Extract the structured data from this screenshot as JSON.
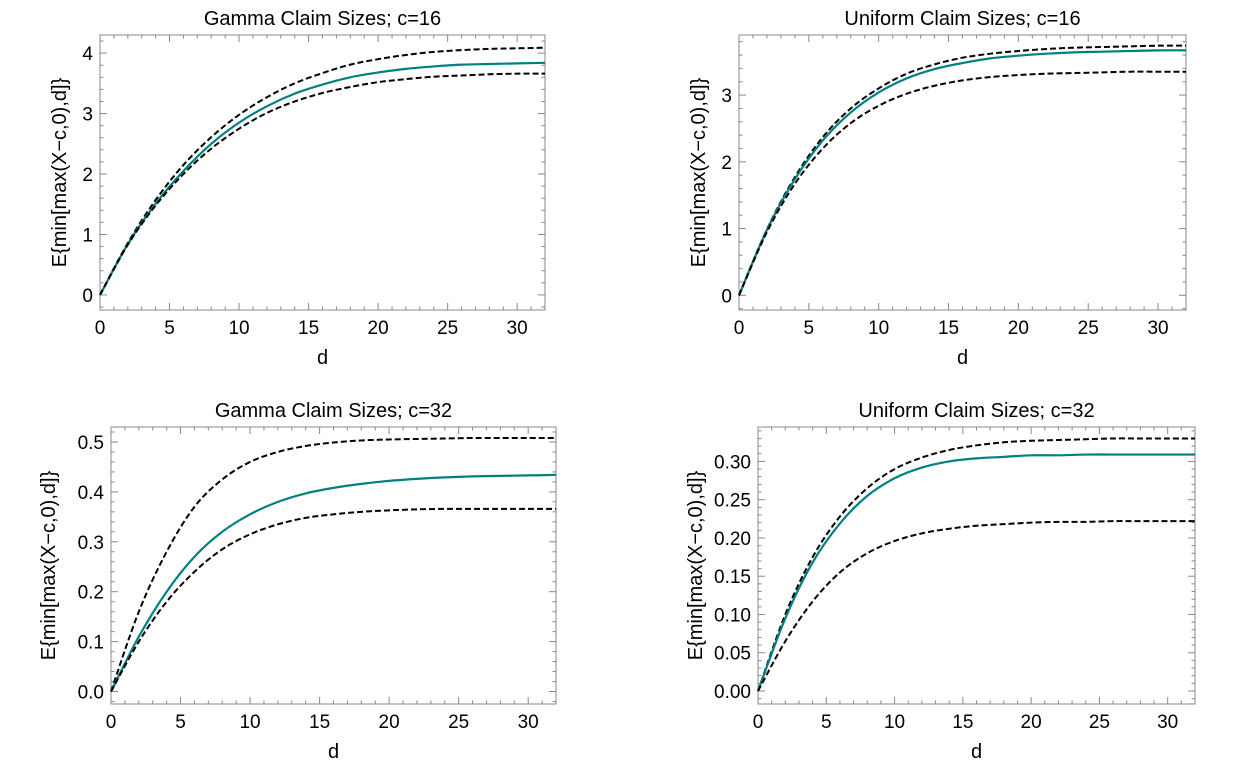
{
  "chart_data": [
    {
      "type": "line",
      "title": "Gamma Claim Sizes; c=16",
      "xlabel": "d",
      "ylabel": "E{min[max(X−c,0),d]}",
      "xlim": [
        0,
        32
      ],
      "ylim": [
        -0.25,
        4.3
      ],
      "xticks": [
        0,
        5,
        10,
        15,
        20,
        25,
        30
      ],
      "yticks": [
        0,
        1,
        2,
        3,
        4
      ],
      "ytick_labels": [
        "0",
        "1",
        "2",
        "3",
        "4"
      ],
      "x": [
        0,
        2,
        4,
        6,
        8,
        10,
        12,
        14,
        16,
        18,
        20,
        22,
        24,
        26,
        28,
        30,
        32
      ],
      "series": [
        {
          "style": "dashed",
          "color": "#000000",
          "values": [
            0,
            0.86,
            1.57,
            2.15,
            2.61,
            2.98,
            3.27,
            3.5,
            3.67,
            3.81,
            3.9,
            3.97,
            4.02,
            4.05,
            4.07,
            4.08,
            4.09
          ]
        },
        {
          "style": "solid",
          "color": "#008080",
          "values": [
            0,
            0.84,
            1.51,
            2.05,
            2.5,
            2.85,
            3.12,
            3.33,
            3.48,
            3.6,
            3.68,
            3.74,
            3.78,
            3.81,
            3.82,
            3.83,
            3.84
          ]
        },
        {
          "style": "dashed",
          "color": "#000000",
          "values": [
            0,
            0.83,
            1.48,
            2.0,
            2.42,
            2.75,
            3.01,
            3.2,
            3.34,
            3.44,
            3.52,
            3.57,
            3.61,
            3.63,
            3.65,
            3.66,
            3.66
          ]
        }
      ]
    },
    {
      "type": "line",
      "title": "Uniform Claim Sizes; c=16",
      "xlabel": "d",
      "ylabel": "E{min[max(X−c,0),d]}",
      "xlim": [
        0,
        32
      ],
      "ylim": [
        -0.22,
        3.9
      ],
      "xticks": [
        0,
        5,
        10,
        15,
        20,
        25,
        30
      ],
      "yticks": [
        0,
        1,
        2,
        3
      ],
      "ytick_labels": [
        "0",
        "1",
        "2",
        "3"
      ],
      "x": [
        0,
        2,
        4,
        6,
        8,
        10,
        12,
        14,
        16,
        18,
        20,
        22,
        24,
        26,
        28,
        30,
        32
      ],
      "series": [
        {
          "style": "dashed",
          "color": "#000000",
          "values": [
            0,
            0.99,
            1.77,
            2.37,
            2.8,
            3.1,
            3.32,
            3.46,
            3.56,
            3.62,
            3.66,
            3.69,
            3.71,
            3.72,
            3.73,
            3.74,
            3.74
          ]
        },
        {
          "style": "solid",
          "color": "#008080",
          "values": [
            0,
            0.98,
            1.74,
            2.32,
            2.74,
            3.04,
            3.25,
            3.39,
            3.48,
            3.55,
            3.59,
            3.62,
            3.64,
            3.65,
            3.66,
            3.67,
            3.67
          ]
        },
        {
          "style": "dashed",
          "color": "#000000",
          "values": [
            0,
            0.95,
            1.67,
            2.2,
            2.58,
            2.84,
            3.02,
            3.14,
            3.22,
            3.27,
            3.3,
            3.32,
            3.33,
            3.34,
            3.35,
            3.35,
            3.35
          ]
        }
      ]
    },
    {
      "type": "line",
      "title": "Gamma Claim Sizes; c=32",
      "xlabel": "d",
      "ylabel": "E{min[max(X−c,0),d]}",
      "xlim": [
        0,
        32
      ],
      "ylim": [
        -0.025,
        0.53
      ],
      "xticks": [
        0,
        5,
        10,
        15,
        20,
        25,
        30
      ],
      "yticks": [
        0,
        0.1,
        0.2,
        0.3,
        0.4,
        0.5
      ],
      "ytick_labels": [
        "0.0",
        "0.1",
        "0.2",
        "0.3",
        "0.4",
        "0.5"
      ],
      "x": [
        0,
        2,
        4,
        6,
        8,
        10,
        12,
        14,
        16,
        18,
        20,
        22,
        24,
        26,
        28,
        30,
        32
      ],
      "series": [
        {
          "style": "dashed",
          "color": "#000000",
          "values": [
            0,
            0.16,
            0.28,
            0.37,
            0.425,
            0.46,
            0.48,
            0.492,
            0.499,
            0.503,
            0.505,
            0.506,
            0.507,
            0.508,
            0.508,
            0.508,
            0.508
          ]
        },
        {
          "style": "solid",
          "color": "#008080",
          "values": [
            0,
            0.11,
            0.2,
            0.27,
            0.32,
            0.355,
            0.38,
            0.397,
            0.408,
            0.416,
            0.422,
            0.426,
            0.429,
            0.431,
            0.432,
            0.433,
            0.434
          ]
        },
        {
          "style": "dashed",
          "color": "#000000",
          "values": [
            0,
            0.1,
            0.18,
            0.24,
            0.285,
            0.315,
            0.335,
            0.348,
            0.355,
            0.36,
            0.363,
            0.365,
            0.366,
            0.366,
            0.366,
            0.366,
            0.366
          ]
        }
      ]
    },
    {
      "type": "line",
      "title": "Uniform Claim Sizes; c=32",
      "xlabel": "d",
      "ylabel": "E{min[max(X−c,0),d]}",
      "xlim": [
        0,
        32
      ],
      "ylim": [
        -0.017,
        0.345
      ],
      "xticks": [
        0,
        5,
        10,
        15,
        20,
        25,
        30
      ],
      "yticks": [
        0,
        0.05,
        0.1,
        0.15,
        0.2,
        0.25,
        0.3
      ],
      "ytick_labels": [
        "0.00",
        "0.05",
        "0.10",
        "0.15",
        "0.20",
        "0.25",
        "0.30"
      ],
      "x": [
        0,
        2,
        4,
        6,
        8,
        10,
        12,
        14,
        16,
        18,
        20,
        22,
        24,
        26,
        28,
        30,
        32
      ],
      "series": [
        {
          "style": "dashed",
          "color": "#000000",
          "values": [
            0,
            0.1,
            0.175,
            0.228,
            0.265,
            0.29,
            0.305,
            0.315,
            0.321,
            0.325,
            0.327,
            0.328,
            0.329,
            0.33,
            0.33,
            0.33,
            0.33
          ]
        },
        {
          "style": "solid",
          "color": "#008080",
          "values": [
            0,
            0.095,
            0.168,
            0.219,
            0.255,
            0.278,
            0.292,
            0.3,
            0.304,
            0.306,
            0.308,
            0.308,
            0.309,
            0.309,
            0.309,
            0.309,
            0.309
          ]
        },
        {
          "style": "dashed",
          "color": "#000000",
          "values": [
            0,
            0.065,
            0.117,
            0.155,
            0.18,
            0.196,
            0.206,
            0.212,
            0.216,
            0.218,
            0.22,
            0.221,
            0.221,
            0.222,
            0.222,
            0.222,
            0.222
          ]
        }
      ]
    }
  ]
}
